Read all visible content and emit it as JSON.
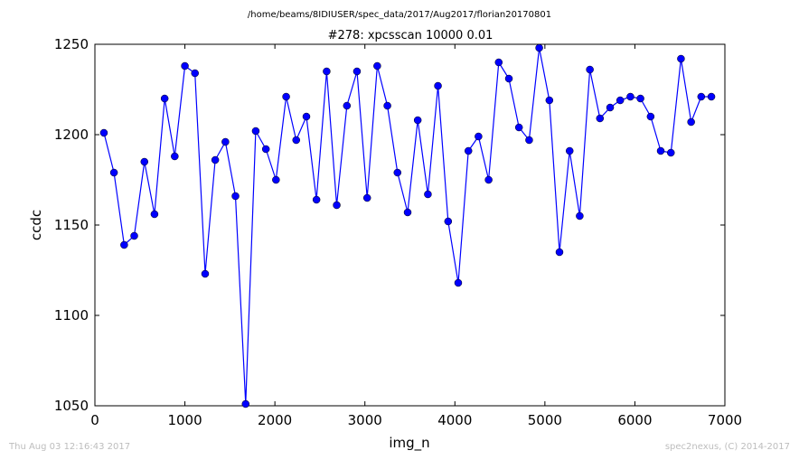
{
  "header": {
    "path": "/home/beams/8IDIUSER/spec_data/2017/Aug2017/florian20170801",
    "title": "#278: xpcsscan 10000 0.01"
  },
  "footer": {
    "timestamp": "Thu Aug 03 12:16:43 2017",
    "credit": "spec2nexus, (C) 2014-2017"
  },
  "chart_data": {
    "type": "line",
    "title": "#278: xpcsscan 10000 0.01",
    "xlabel": "img_n",
    "ylabel": "ccdc",
    "xlim": [
      0,
      7000
    ],
    "ylim": [
      1050,
      1250
    ],
    "xticks": [
      0,
      1000,
      2000,
      3000,
      4000,
      5000,
      6000,
      7000
    ],
    "yticks": [
      1050,
      1100,
      1150,
      1200,
      1250
    ],
    "marker": "circle",
    "line_color": "#0000ff",
    "marker_color": "#0000ff",
    "grid": false,
    "series": [
      {
        "x": [
          100,
          212,
          325,
          437,
          550,
          662,
          775,
          887,
          1000,
          1112,
          1225,
          1337,
          1450,
          1562,
          1675,
          1787,
          1900,
          2012,
          2125,
          2237,
          2350,
          2462,
          2575,
          2687,
          2800,
          2912,
          3025,
          3137,
          3250,
          3362,
          3475,
          3587,
          3700,
          3812,
          3925,
          4037,
          4150,
          4262,
          4375,
          4487,
          4600,
          4712,
          4825,
          4937,
          5050,
          5162,
          5275,
          5387,
          5500,
          5612,
          5725,
          5837,
          5950,
          6062,
          6175,
          6287,
          6400,
          6512,
          6625,
          6737,
          6850
        ],
        "values": [
          1201,
          1179,
          1139,
          1144,
          1185,
          1156,
          1220,
          1188,
          1238,
          1234,
          1123,
          1186,
          1196,
          1166,
          1051,
          1202,
          1192,
          1175,
          1221,
          1197,
          1210,
          1164,
          1235,
          1161,
          1216,
          1235,
          1165,
          1238,
          1216,
          1179,
          1157,
          1208,
          1167,
          1227,
          1152,
          1118,
          1191,
          1199,
          1175,
          1240,
          1231,
          1204,
          1197,
          1248,
          1219,
          1135,
          1191,
          1155,
          1236,
          1209,
          1215,
          1219,
          1221,
          1220,
          1210,
          1191,
          1190,
          1242,
          1207,
          1221,
          1221
        ]
      }
    ]
  }
}
